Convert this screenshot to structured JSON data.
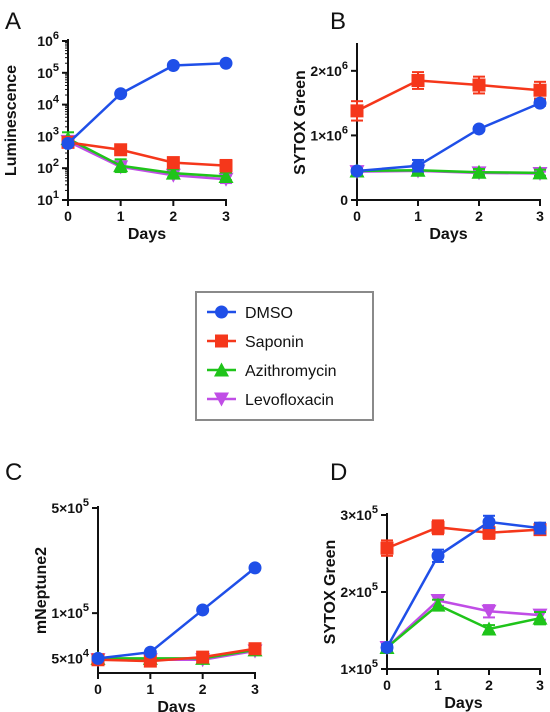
{
  "legend": {
    "entries": [
      {
        "name": "DMSO",
        "color": "#1f4fe8",
        "marker": "circle"
      },
      {
        "name": "Saponin",
        "color": "#f5371b",
        "marker": "square"
      },
      {
        "name": "Azithromycin",
        "color": "#1fc41a",
        "marker": "triangle-up"
      },
      {
        "name": "Levofloxacin",
        "color": "#c04de6",
        "marker": "triangle-down"
      }
    ]
  },
  "chart_data": [
    {
      "panel": "A",
      "type": "line",
      "xlabel": "Days",
      "ylabel": "Luminescence",
      "yscale": "log",
      "ylim": [
        10,
        1000000
      ],
      "xlim": [
        0,
        3
      ],
      "x": [
        0,
        1,
        2,
        3
      ],
      "xticks": [
        "0",
        "1",
        "2",
        "3"
      ],
      "yticks": [
        {
          "base": "10",
          "exp": "1"
        },
        {
          "base": "10",
          "exp": "2"
        },
        {
          "base": "10",
          "exp": "3"
        },
        {
          "base": "10",
          "exp": "4"
        },
        {
          "base": "10",
          "exp": "5"
        },
        {
          "base": "10",
          "exp": "6"
        }
      ],
      "series": [
        {
          "name": "DMSO",
          "values": [
            600,
            22000,
            170000,
            200000
          ],
          "err": [
            0,
            0,
            0,
            0
          ]
        },
        {
          "name": "Saponin",
          "values": [
            650,
            380,
            150,
            120
          ],
          "err": [
            0.12,
            0.12,
            0.15,
            0.18
          ]
        },
        {
          "name": "Azithromycin",
          "values": [
            850,
            120,
            70,
            55
          ],
          "err": [
            0.2,
            0.2,
            0.12,
            0.12
          ]
        },
        {
          "name": "Levofloxacin",
          "values": [
            700,
            110,
            60,
            45
          ],
          "err": [
            0.12,
            0.1,
            0.1,
            0.12
          ]
        }
      ]
    },
    {
      "panel": "B",
      "type": "line",
      "xlabel": "Days",
      "ylabel": "SYTOX Green",
      "ylim": [
        0,
        2400000
      ],
      "xlim": [
        0,
        3
      ],
      "x": [
        0,
        1,
        2,
        3
      ],
      "xticks": [
        "0",
        "1",
        "2",
        "3"
      ],
      "yticks": [
        {
          "value": 0,
          "label": "0"
        },
        {
          "value": 1000000,
          "base": "1×10",
          "exp": "6"
        },
        {
          "value": 2000000,
          "base": "2×10",
          "exp": "6"
        }
      ],
      "series": [
        {
          "name": "DMSO",
          "values": [
            450000,
            530000,
            1100000,
            1500000
          ],
          "err": [
            30000,
            90000,
            30000,
            40000
          ]
        },
        {
          "name": "Saponin",
          "values": [
            1380000,
            1850000,
            1780000,
            1700000
          ],
          "err": [
            150000,
            130000,
            130000,
            130000
          ]
        },
        {
          "name": "Azithromycin",
          "values": [
            450000,
            460000,
            430000,
            420000
          ],
          "err": [
            30000,
            60000,
            50000,
            50000
          ]
        },
        {
          "name": "Levofloxacin",
          "values": [
            440000,
            450000,
            420000,
            410000
          ],
          "err": [
            20000,
            30000,
            30000,
            30000
          ]
        }
      ]
    },
    {
      "panel": "C",
      "type": "line",
      "xlabel": "Days",
      "ylabel": "mNeptune2",
      "yscale": "log",
      "ylim": [
        40000,
        500000
      ],
      "xlim": [
        0,
        3
      ],
      "x": [
        0,
        1,
        2,
        3
      ],
      "xticks": [
        "0",
        "1",
        "2",
        "3"
      ],
      "yticks": [
        {
          "value": 50000,
          "base": "5×10",
          "exp": "4"
        },
        {
          "value": 100000,
          "base": "1×10",
          "exp": "5"
        },
        {
          "value": 500000,
          "base": "5×10",
          "exp": "5"
        }
      ],
      "series": [
        {
          "name": "DMSO",
          "values": [
            50000,
            55000,
            105000,
            200000
          ],
          "err": [
            0,
            0,
            0,
            0
          ]
        },
        {
          "name": "Saponin",
          "values": [
            49000,
            48000,
            51000,
            58000
          ],
          "err": [
            0,
            0,
            0,
            0
          ]
        },
        {
          "name": "Azithromycin",
          "values": [
            50000,
            50000,
            50000,
            57000
          ],
          "err": [
            0,
            0,
            0,
            0
          ]
        },
        {
          "name": "Levofloxacin",
          "values": [
            49000,
            49000,
            49000,
            56000
          ],
          "err": [
            0,
            0,
            0,
            0
          ]
        }
      ]
    },
    {
      "panel": "D",
      "type": "line",
      "xlabel": "Days",
      "ylabel": "SYTOX Green",
      "ylim": [
        100000,
        300000
      ],
      "xlim": [
        0,
        3
      ],
      "x": [
        0,
        1,
        2,
        3
      ],
      "xticks": [
        "0",
        "1",
        "2",
        "3"
      ],
      "yticks": [
        {
          "value": 100000,
          "base": "1×10",
          "exp": "5"
        },
        {
          "value": 200000,
          "base": "2×10",
          "exp": "5"
        },
        {
          "value": 300000,
          "base": "3×10",
          "exp": "5"
        }
      ],
      "series": [
        {
          "name": "DMSO",
          "values": [
            128000,
            247000,
            291000,
            283000
          ],
          "err": [
            4000,
            8000,
            8000,
            7000
          ]
        },
        {
          "name": "Saponin",
          "values": [
            257000,
            284000,
            277000,
            281000
          ],
          "err": [
            10000,
            9000,
            8000,
            7000
          ]
        },
        {
          "name": "Azithromycin",
          "values": [
            128000,
            183000,
            152000,
            166000
          ],
          "err": [
            4000,
            7000,
            5000,
            8000
          ]
        },
        {
          "name": "Levofloxacin",
          "values": [
            128000,
            189000,
            175000,
            170000
          ],
          "err": [
            4000,
            7000,
            8000,
            6000
          ]
        }
      ]
    }
  ]
}
